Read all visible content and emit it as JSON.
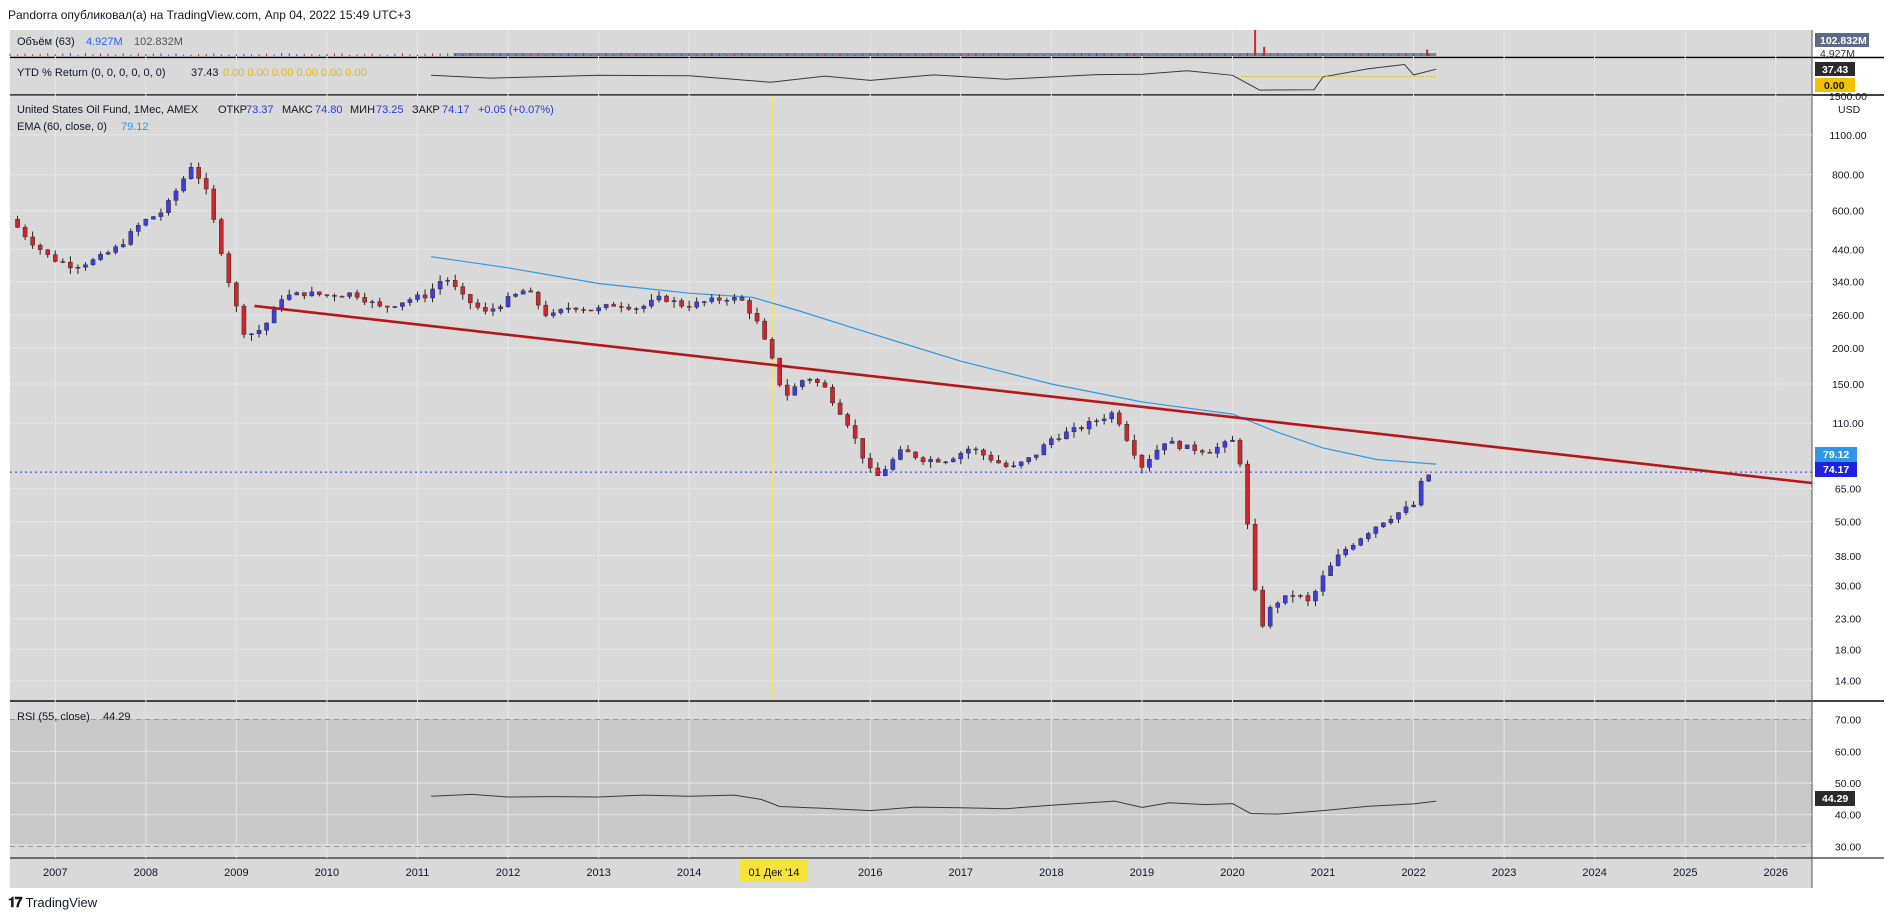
{
  "header": {
    "caption": "Pandorra опубликовал(а) на TradingView.com, Апр 04, 2022 15:49 UTC+3"
  },
  "footer": {
    "logo_mark": "𝟏𝟕",
    "logo_text": "TradingView"
  },
  "colors": {
    "background": "#d9d9d9",
    "up": "#3d3dd9",
    "down": "#c8282e",
    "ema": "#2f97e6",
    "trendline": "#b5181b",
    "rsi_line": "#3a3a3a",
    "ytd_line": "#3a3a3a",
    "last_price_bg": "#1e22e0",
    "ema_label_bg": "#2f97e6"
  },
  "volume_panel": {
    "label": "Объём (63)",
    "value1": "4.927M",
    "value2": "102.832M",
    "scale_label": "102.832M",
    "scale_label2": "4.927M"
  },
  "ytd_panel": {
    "label": "YTD % Return (0, 0, 0, 0, 0, 0)",
    "value": "37.43",
    "zeros": "0.00  0.00  0.00  0.00  0.00  0.00",
    "scale_label1": "37.43",
    "scale_label2": "0.00"
  },
  "main_panel": {
    "title": "United States Oil Fund, 1Мес, AMEX",
    "o_label": "ОТКР",
    "o_value": "73.37",
    "h_label": "МАКС",
    "h_value": "74.80",
    "l_label": "МИН",
    "l_value": "73.25",
    "c_label": "ЗАКР",
    "c_value": "74.17",
    "change": "+0.05 (+0.07%)",
    "ema_label": "EMA (60, close, 0)",
    "ema_value": "79.12",
    "currency": "USD",
    "price_ticks": [
      "1500.00",
      "1100.00",
      "800.00",
      "600.00",
      "440.00",
      "340.00",
      "260.00",
      "200.00",
      "150.00",
      "110.00",
      "65.00",
      "50.00",
      "38.00",
      "30.00",
      "23.00",
      "18.00",
      "14.00"
    ],
    "last_price_label": "74.17",
    "ema_price_label": "79.12"
  },
  "rsi_panel": {
    "label": "RSI (55, close)",
    "value": "44.29",
    "ticks": [
      "70.00",
      "60.00",
      "50.00",
      "40.00",
      "30.00"
    ],
    "value_label": "44.29"
  },
  "time_axis": {
    "years": [
      "2007",
      "2008",
      "2009",
      "2010",
      "2011",
      "2012",
      "2013",
      "2014",
      "2016",
      "2017",
      "2018",
      "2019",
      "2020",
      "2021",
      "2022",
      "2023",
      "2024",
      "2025",
      "2026"
    ],
    "cursor_label": "01 Дек '14"
  },
  "chart_data": {
    "type": "candlestick",
    "title": "United States Oil Fund, 1Мес, AMEX",
    "y_scale": "log",
    "ylim": [
      12,
      1500
    ],
    "xlim": [
      2006.5,
      2026.4
    ],
    "cursor_x": 2014.92,
    "last_close": 74.17,
    "ema_last": 79.12,
    "anchors": [
      {
        "t": 2006.5,
        "p": 560
      },
      {
        "t": 2006.7,
        "p": 480
      },
      {
        "t": 2006.95,
        "p": 410
      },
      {
        "t": 2007.2,
        "p": 385
      },
      {
        "t": 2007.45,
        "p": 405
      },
      {
        "t": 2007.7,
        "p": 450
      },
      {
        "t": 2007.95,
        "p": 545
      },
      {
        "t": 2008.2,
        "p": 600
      },
      {
        "t": 2008.4,
        "p": 760
      },
      {
        "t": 2008.5,
        "p": 860
      },
      {
        "t": 2008.65,
        "p": 730
      },
      {
        "t": 2008.8,
        "p": 480
      },
      {
        "t": 2008.95,
        "p": 310
      },
      {
        "t": 2009.1,
        "p": 220
      },
      {
        "t": 2009.3,
        "p": 235
      },
      {
        "t": 2009.5,
        "p": 300
      },
      {
        "t": 2009.75,
        "p": 310
      },
      {
        "t": 2010.0,
        "p": 305
      },
      {
        "t": 2010.3,
        "p": 310
      },
      {
        "t": 2010.6,
        "p": 275
      },
      {
        "t": 2010.9,
        "p": 295
      },
      {
        "t": 2011.1,
        "p": 305
      },
      {
        "t": 2011.3,
        "p": 355
      },
      {
        "t": 2011.5,
        "p": 300
      },
      {
        "t": 2011.75,
        "p": 265
      },
      {
        "t": 2012.0,
        "p": 295
      },
      {
        "t": 2012.2,
        "p": 320
      },
      {
        "t": 2012.45,
        "p": 255
      },
      {
        "t": 2012.7,
        "p": 280
      },
      {
        "t": 2012.95,
        "p": 270
      },
      {
        "t": 2013.2,
        "p": 285
      },
      {
        "t": 2013.45,
        "p": 275
      },
      {
        "t": 2013.7,
        "p": 300
      },
      {
        "t": 2013.95,
        "p": 280
      },
      {
        "t": 2014.2,
        "p": 290
      },
      {
        "t": 2014.45,
        "p": 300
      },
      {
        "t": 2014.6,
        "p": 290
      },
      {
        "t": 2014.75,
        "p": 245
      },
      {
        "t": 2014.92,
        "p": 180
      },
      {
        "t": 2015.05,
        "p": 135
      },
      {
        "t": 2015.3,
        "p": 160
      },
      {
        "t": 2015.5,
        "p": 145
      },
      {
        "t": 2015.75,
        "p": 110
      },
      {
        "t": 2015.95,
        "p": 80
      },
      {
        "t": 2016.05,
        "p": 70
      },
      {
        "t": 2016.35,
        "p": 88
      },
      {
        "t": 2016.6,
        "p": 82
      },
      {
        "t": 2016.85,
        "p": 82
      },
      {
        "t": 2017.1,
        "p": 90
      },
      {
        "t": 2017.35,
        "p": 82
      },
      {
        "t": 2017.55,
        "p": 76
      },
      {
        "t": 2017.8,
        "p": 84
      },
      {
        "t": 2018.0,
        "p": 97
      },
      {
        "t": 2018.3,
        "p": 105
      },
      {
        "t": 2018.7,
        "p": 120
      },
      {
        "t": 2018.85,
        "p": 95
      },
      {
        "t": 2019.0,
        "p": 78
      },
      {
        "t": 2019.25,
        "p": 95
      },
      {
        "t": 2019.5,
        "p": 90
      },
      {
        "t": 2019.75,
        "p": 88
      },
      {
        "t": 2020.0,
        "p": 95
      },
      {
        "t": 2020.1,
        "p": 78
      },
      {
        "t": 2020.2,
        "p": 38
      },
      {
        "t": 2020.3,
        "p": 21
      },
      {
        "t": 2020.45,
        "p": 26
      },
      {
        "t": 2020.7,
        "p": 28
      },
      {
        "t": 2020.85,
        "p": 26
      },
      {
        "t": 2021.0,
        "p": 32
      },
      {
        "t": 2021.2,
        "p": 39
      },
      {
        "t": 2021.45,
        "p": 45
      },
      {
        "t": 2021.65,
        "p": 50
      },
      {
        "t": 2021.85,
        "p": 54
      },
      {
        "t": 2022.0,
        "p": 57
      },
      {
        "t": 2022.1,
        "p": 70
      },
      {
        "t": 2022.2,
        "p": 74
      }
    ],
    "ema_curve": [
      {
        "t": 2011.15,
        "p": 415
      },
      {
        "t": 2012.0,
        "p": 380
      },
      {
        "t": 2013.0,
        "p": 335
      },
      {
        "t": 2014.0,
        "p": 310
      },
      {
        "t": 2014.7,
        "p": 300
      },
      {
        "t": 2015.2,
        "p": 270
      },
      {
        "t": 2016.0,
        "p": 225
      },
      {
        "t": 2017.0,
        "p": 180
      },
      {
        "t": 2018.0,
        "p": 150
      },
      {
        "t": 2019.0,
        "p": 130
      },
      {
        "t": 2020.0,
        "p": 118
      },
      {
        "t": 2020.5,
        "p": 102
      },
      {
        "t": 2021.0,
        "p": 90
      },
      {
        "t": 2021.6,
        "p": 82
      },
      {
        "t": 2022.25,
        "p": 79.12
      }
    ],
    "trendline": {
      "t1": 2009.2,
      "p1": 280,
      "t2": 2026.4,
      "p2": 68
    },
    "rsi_curve": [
      {
        "t": 2011.15,
        "v": 45.8
      },
      {
        "t": 2011.6,
        "v": 46.4
      },
      {
        "t": 2012.0,
        "v": 45.6
      },
      {
        "t": 2012.5,
        "v": 45.7
      },
      {
        "t": 2013.0,
        "v": 45.6
      },
      {
        "t": 2013.5,
        "v": 46.2
      },
      {
        "t": 2014.0,
        "v": 45.8
      },
      {
        "t": 2014.5,
        "v": 46.2
      },
      {
        "t": 2014.8,
        "v": 44.8
      },
      {
        "t": 2015.0,
        "v": 42.6
      },
      {
        "t": 2015.5,
        "v": 42.0
      },
      {
        "t": 2016.0,
        "v": 41.3
      },
      {
        "t": 2016.5,
        "v": 42.4
      },
      {
        "t": 2017.0,
        "v": 42.2
      },
      {
        "t": 2017.5,
        "v": 41.9
      },
      {
        "t": 2018.0,
        "v": 43.0
      },
      {
        "t": 2018.7,
        "v": 44.3
      },
      {
        "t": 2019.0,
        "v": 42.3
      },
      {
        "t": 2019.3,
        "v": 43.8
      },
      {
        "t": 2019.7,
        "v": 43.2
      },
      {
        "t": 2020.0,
        "v": 43.5
      },
      {
        "t": 2020.2,
        "v": 40.4
      },
      {
        "t": 2020.5,
        "v": 40.2
      },
      {
        "t": 2021.0,
        "v": 41.3
      },
      {
        "t": 2021.5,
        "v": 42.7
      },
      {
        "t": 2022.0,
        "v": 43.4
      },
      {
        "t": 2022.25,
        "v": 44.29
      }
    ],
    "rsi_ylim": [
      27,
      73
    ],
    "ytd_curve": [
      {
        "t": 2011.15,
        "v": 6
      },
      {
        "t": 2011.8,
        "v": -8
      },
      {
        "t": 2012.5,
        "v": 0
      },
      {
        "t": 2013.0,
        "v": 6
      },
      {
        "t": 2014.0,
        "v": 4
      },
      {
        "t": 2014.9,
        "v": -30
      },
      {
        "t": 2015.5,
        "v": 2
      },
      {
        "t": 2016.0,
        "v": -20
      },
      {
        "t": 2016.7,
        "v": 8
      },
      {
        "t": 2017.5,
        "v": -14
      },
      {
        "t": 2018.5,
        "v": 10
      },
      {
        "t": 2019.0,
        "v": 12
      },
      {
        "t": 2019.5,
        "v": 30
      },
      {
        "t": 2020.0,
        "v": 6
      },
      {
        "t": 2020.3,
        "v": -70
      },
      {
        "t": 2020.9,
        "v": -68
      },
      {
        "t": 2021.0,
        "v": -2
      },
      {
        "t": 2021.5,
        "v": 40
      },
      {
        "t": 2021.9,
        "v": 62
      },
      {
        "t": 2022.0,
        "v": 8
      },
      {
        "t": 2022.25,
        "v": 37.43
      }
    ],
    "ytd_ylim": [
      -85,
      85
    ],
    "volume_spikes": [
      {
        "t": 2020.25,
        "v": 1.0
      },
      {
        "t": 2020.35,
        "v": 0.35
      },
      {
        "t": 2022.15,
        "v": 0.25
      }
    ]
  }
}
